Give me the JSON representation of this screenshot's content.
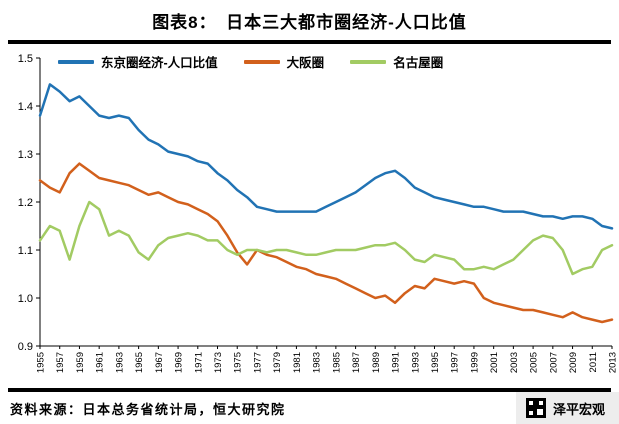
{
  "title": "图表8：　日本三大都市圈经济-人口比值",
  "footer": {
    "source": "资料来源：日本总务省统计局，恒大研究院",
    "watermark": "泽平宏观"
  },
  "colors": {
    "tokyo_blue": "#2173B4",
    "osaka_orange": "#D2601C",
    "nagoya_green": "#A2CB63"
  },
  "chart_data": {
    "type": "line",
    "title": "日本三大都市圈经济-人口比值",
    "xlabel": "",
    "ylabel": "",
    "x_start": 1955,
    "x_end": 2013,
    "x_tick_step": 2,
    "ylim": [
      0.9,
      1.5
    ],
    "y_ticks": [
      0.9,
      1.0,
      1.1,
      1.2,
      1.3,
      1.4,
      1.5
    ],
    "grid": false,
    "legend_position": "top",
    "series": [
      {
        "key": "tokyo",
        "name": "东京圈经济-人口比值",
        "color": "#2173B4",
        "values": [
          1.38,
          1.445,
          1.43,
          1.41,
          1.42,
          1.4,
          1.38,
          1.375,
          1.38,
          1.375,
          1.35,
          1.33,
          1.32,
          1.305,
          1.3,
          1.295,
          1.285,
          1.28,
          1.26,
          1.245,
          1.225,
          1.21,
          1.19,
          1.185,
          1.18,
          1.18,
          1.18,
          1.18,
          1.18,
          1.19,
          1.2,
          1.21,
          1.22,
          1.235,
          1.25,
          1.26,
          1.265,
          1.25,
          1.23,
          1.22,
          1.21,
          1.205,
          1.2,
          1.195,
          1.19,
          1.19,
          1.185,
          1.18,
          1.18,
          1.18,
          1.175,
          1.17,
          1.17,
          1.165,
          1.17,
          1.17,
          1.165,
          1.15,
          1.145
        ]
      },
      {
        "key": "osaka",
        "name": "大阪圈",
        "color": "#D2601C",
        "values": [
          1.245,
          1.23,
          1.22,
          1.26,
          1.28,
          1.265,
          1.25,
          1.245,
          1.24,
          1.235,
          1.225,
          1.215,
          1.22,
          1.21,
          1.2,
          1.195,
          1.185,
          1.175,
          1.16,
          1.13,
          1.095,
          1.07,
          1.1,
          1.09,
          1.085,
          1.075,
          1.065,
          1.06,
          1.05,
          1.045,
          1.04,
          1.03,
          1.02,
          1.01,
          1.0,
          1.005,
          0.99,
          1.01,
          1.025,
          1.02,
          1.04,
          1.035,
          1.03,
          1.035,
          1.03,
          1.0,
          0.99,
          0.985,
          0.98,
          0.975,
          0.975,
          0.97,
          0.965,
          0.96,
          0.97,
          0.96,
          0.955,
          0.95,
          0.955
        ]
      },
      {
        "key": "nagoya",
        "name": "名古屋圈",
        "color": "#A2CB63",
        "values": [
          1.12,
          1.15,
          1.14,
          1.08,
          1.15,
          1.2,
          1.185,
          1.13,
          1.14,
          1.13,
          1.095,
          1.08,
          1.11,
          1.125,
          1.13,
          1.135,
          1.13,
          1.12,
          1.12,
          1.1,
          1.09,
          1.1,
          1.1,
          1.095,
          1.1,
          1.1,
          1.095,
          1.09,
          1.09,
          1.095,
          1.1,
          1.1,
          1.1,
          1.105,
          1.11,
          1.11,
          1.115,
          1.1,
          1.08,
          1.075,
          1.09,
          1.085,
          1.08,
          1.06,
          1.06,
          1.065,
          1.06,
          1.07,
          1.08,
          1.1,
          1.12,
          1.13,
          1.125,
          1.1,
          1.05,
          1.06,
          1.065,
          1.1,
          1.11
        ]
      }
    ]
  }
}
